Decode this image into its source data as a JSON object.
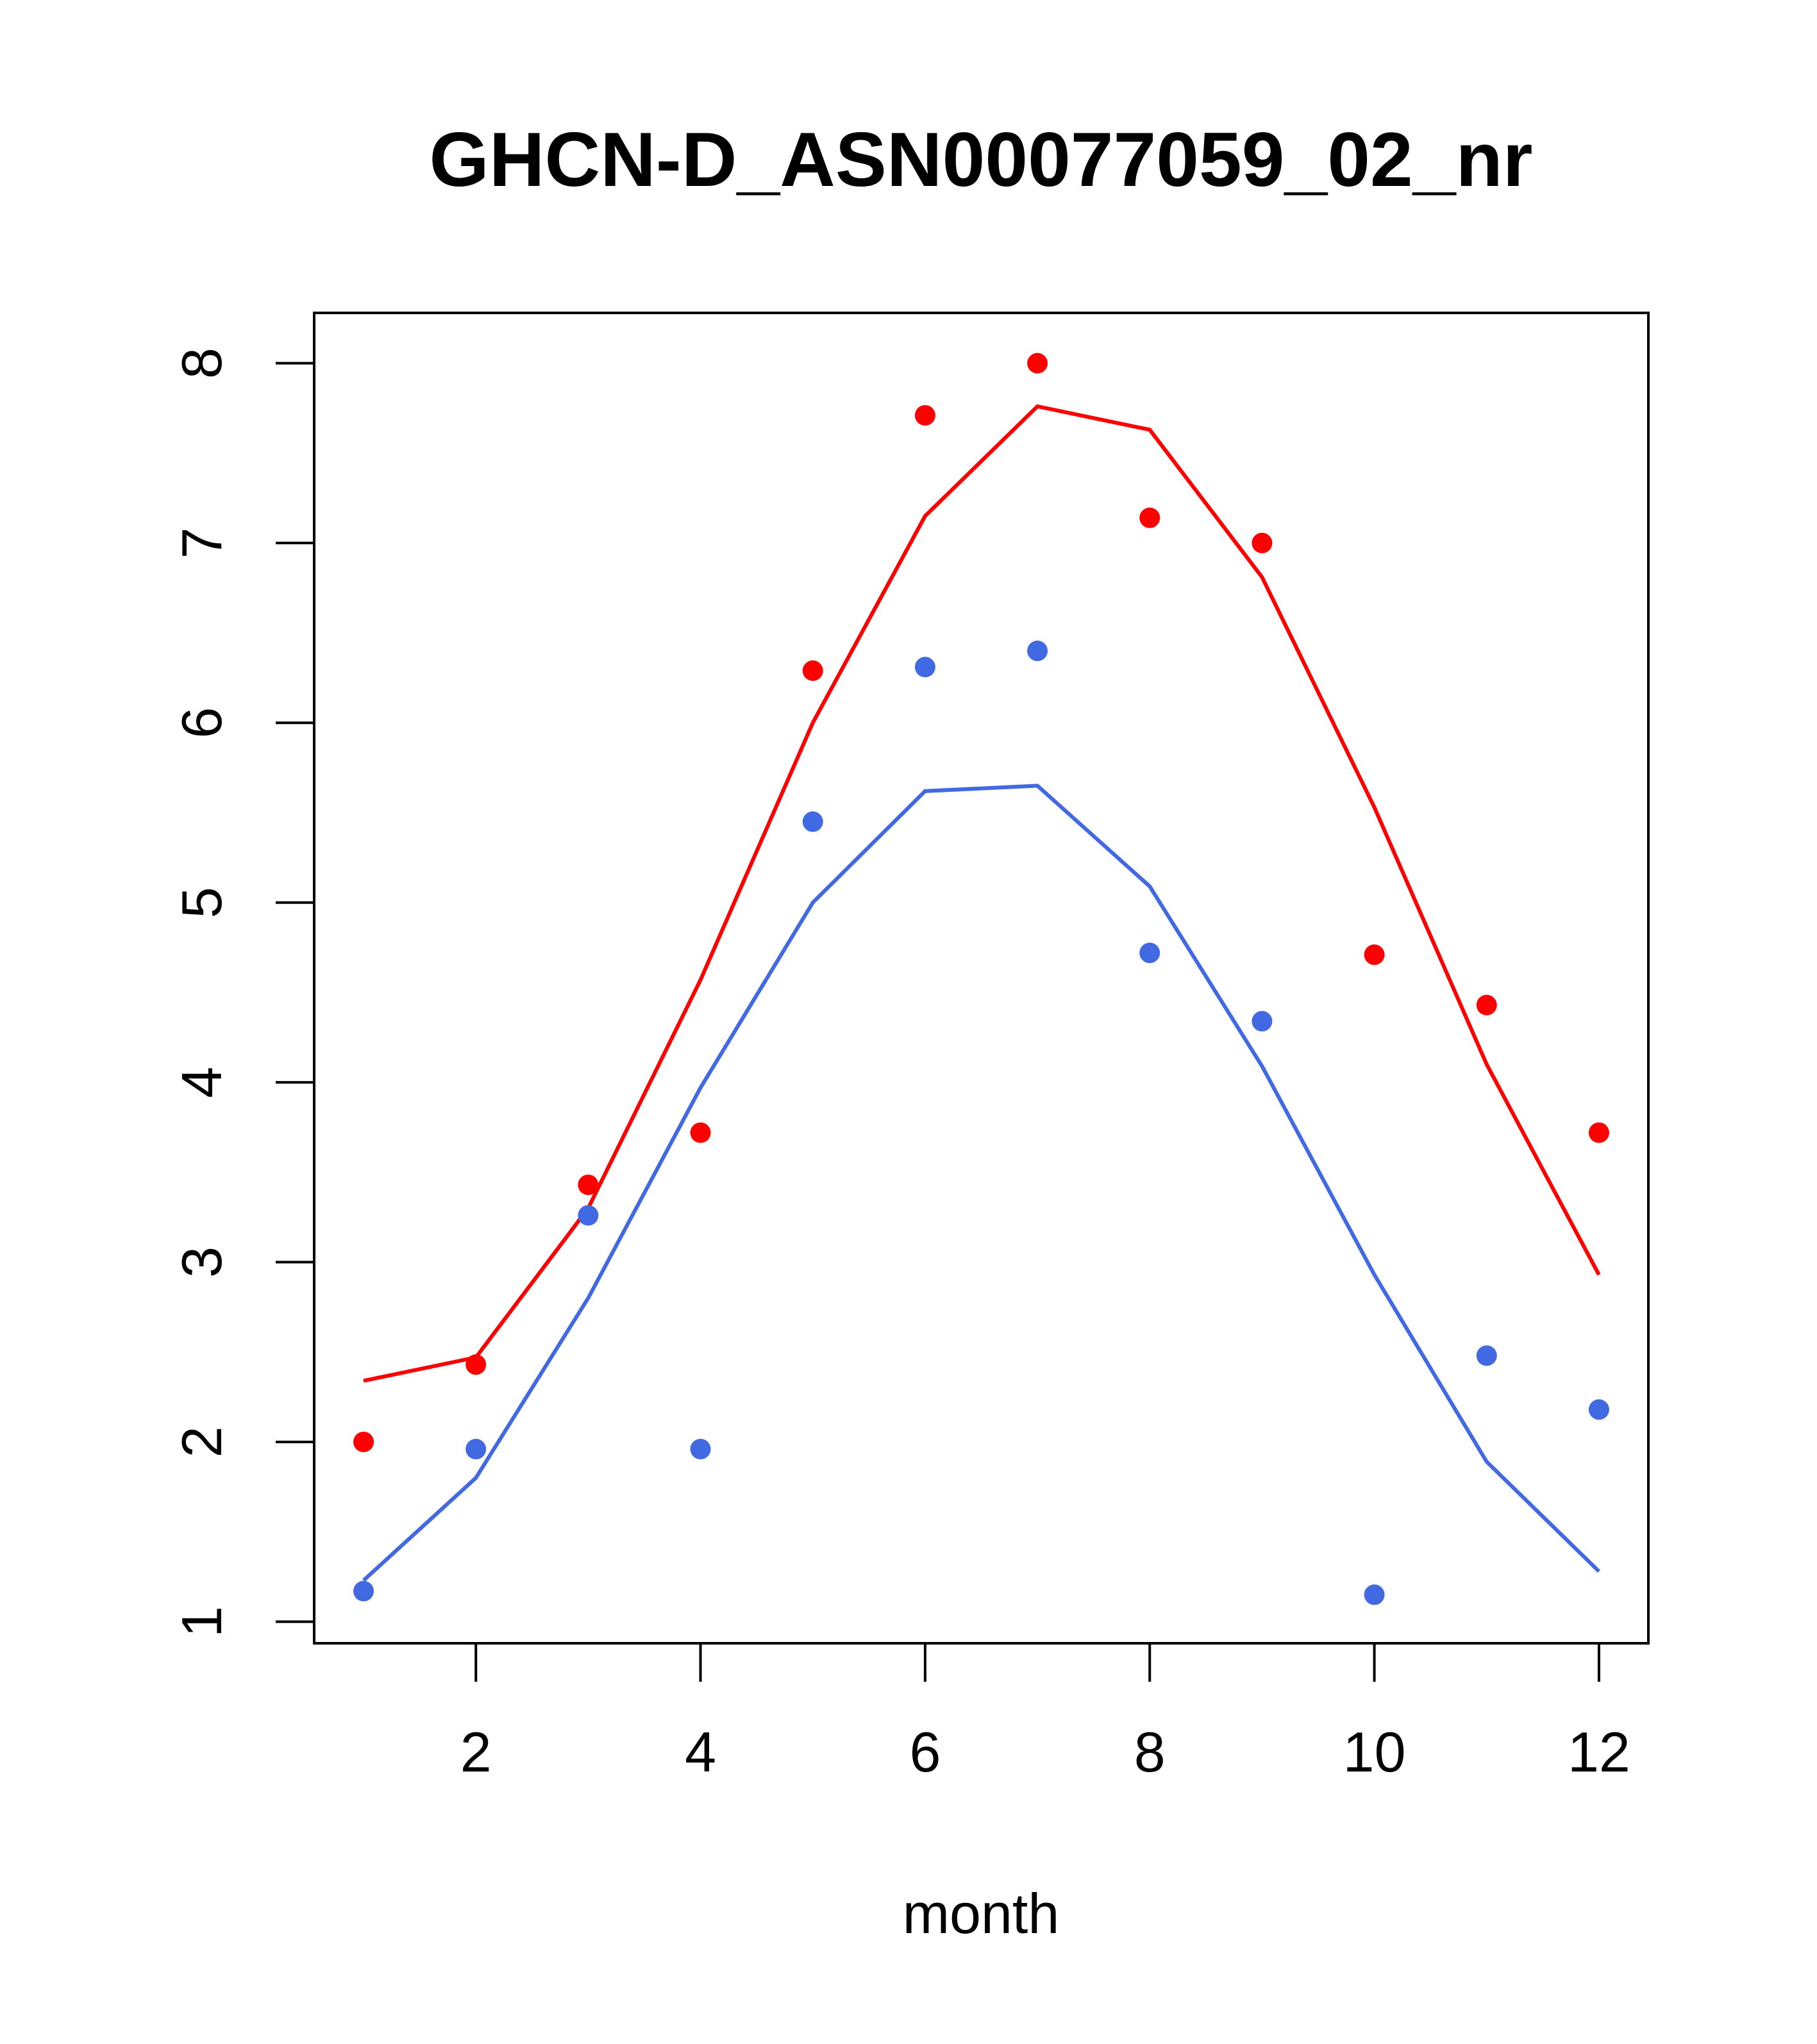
{
  "chart_data": {
    "type": "line",
    "title": "GHCN-D_ASN00077059_02_nr",
    "xlabel": "month",
    "ylabel": "",
    "xlim": [
      0.56,
      12.44
    ],
    "ylim": [
      0.88,
      8.28
    ],
    "xticks": [
      2,
      4,
      6,
      8,
      10,
      12
    ],
    "yticks": [
      1,
      2,
      3,
      4,
      5,
      6,
      7,
      8
    ],
    "grid": false,
    "x": [
      1,
      2,
      3,
      4,
      5,
      6,
      7,
      8,
      9,
      10,
      11,
      12
    ],
    "series": [
      {
        "name": "red points",
        "kind": "scatter",
        "color": "#ff0000",
        "values": [
          2.0,
          2.43,
          3.43,
          3.72,
          6.29,
          7.71,
          8.0,
          7.14,
          7.0,
          4.71,
          4.43,
          3.72
        ]
      },
      {
        "name": "blue points",
        "kind": "scatter",
        "color": "#4169e1",
        "values": [
          1.17,
          1.96,
          3.26,
          1.96,
          5.45,
          6.31,
          6.4,
          4.72,
          4.34,
          1.15,
          2.48,
          2.18
        ]
      },
      {
        "name": "red line",
        "kind": "line",
        "color": "#ff0000",
        "values": [
          2.34,
          2.47,
          3.3,
          4.57,
          6.0,
          7.15,
          7.76,
          7.63,
          6.81,
          5.53,
          4.1,
          2.93
        ]
      },
      {
        "name": "blue line",
        "kind": "line",
        "color": "#4169e1",
        "values": [
          1.23,
          1.8,
          2.8,
          3.97,
          5.0,
          5.62,
          5.65,
          5.09,
          4.09,
          2.93,
          1.89,
          1.28
        ]
      }
    ]
  }
}
